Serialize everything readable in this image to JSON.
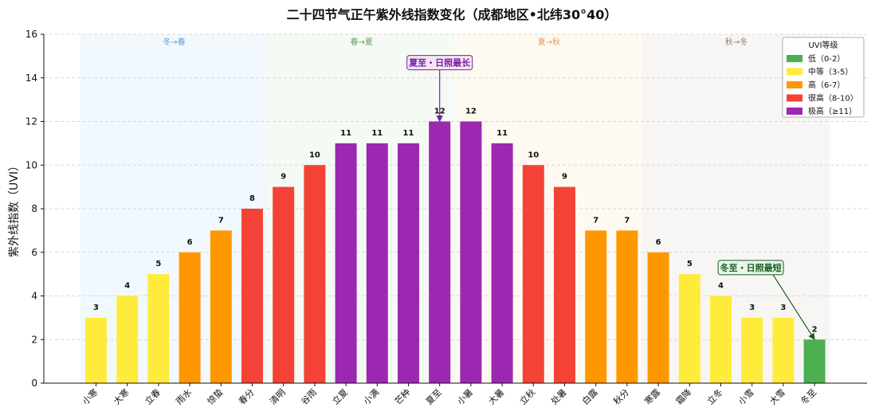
{
  "chart_data": {
    "type": "bar",
    "title": "二十四节气正午紫外线指数变化（成都地区•北纬30°40）",
    "ylabel": "紫外线指数（UVI）",
    "xlabel": "",
    "ylim": [
      0,
      16
    ],
    "yticks": [
      0,
      2,
      4,
      6,
      8,
      10,
      12,
      14,
      16
    ],
    "grid": true,
    "categories": [
      "小寒",
      "大寒",
      "立春",
      "雨水",
      "惊蛰",
      "春分",
      "清明",
      "谷雨",
      "立夏",
      "小满",
      "芒种",
      "夏至",
      "小暑",
      "大暑",
      "立秋",
      "处暑",
      "白露",
      "秋分",
      "寒露",
      "霜降",
      "立冬",
      "小雪",
      "大雪",
      "冬至"
    ],
    "values": [
      3,
      4,
      5,
      6,
      7,
      8,
      9,
      10,
      11,
      11,
      11,
      12,
      12,
      11,
      10,
      9,
      7,
      7,
      6,
      5,
      4,
      3,
      3,
      2
    ],
    "value_labels": [
      "3",
      "4",
      "5",
      "6",
      "7",
      "8",
      "9",
      "10",
      "11",
      "11",
      "11",
      "12",
      "12",
      "11",
      "10",
      "9",
      "7",
      "7",
      "6",
      "5",
      "4",
      "3",
      "3",
      "2"
    ],
    "level_colors": {
      "low": "#4caf50",
      "moderate": "#ffeb3b",
      "high": "#ff9800",
      "very_high": "#f44336",
      "extreme": "#9c27b0"
    },
    "seasons": [
      {
        "label": "冬→春",
        "start": 0,
        "end": 5,
        "color": "#e3f2fd",
        "text_color": "#5b9bd5"
      },
      {
        "label": "春→夏",
        "start": 6,
        "end": 11,
        "color": "#e8f5e9",
        "text_color": "#5a9e5e"
      },
      {
        "label": "夏→秋",
        "start": 12,
        "end": 17,
        "color": "#fff3e0",
        "text_color": "#e8935a"
      },
      {
        "label": "秋→冬",
        "start": 18,
        "end": 23,
        "color": "#efebe9",
        "text_color": "#8d7b72"
      }
    ],
    "legend": {
      "title": "UVI等级",
      "placement": "top-right",
      "entries": [
        {
          "label": "低（0-2）",
          "color": "#4caf50"
        },
        {
          "label": "中等（3-5）",
          "color": "#ffeb3b"
        },
        {
          "label": "高（6-7）",
          "color": "#ff9800"
        },
        {
          "label": "很高（8-10）",
          "color": "#f44336"
        },
        {
          "label": "极高（≥11）",
          "color": "#9c27b0"
        }
      ]
    },
    "annotations": [
      {
        "text": "夏至・日照最长",
        "target_index": 11,
        "target_value": 12,
        "color": "#7b1fa2",
        "bg": "#f3e5f5",
        "text_y": 14.7
      },
      {
        "text": "冬至・日照最短",
        "target_index": 23,
        "target_value": 2,
        "color": "#1b5e20",
        "bg": "#e8f5e9",
        "text_y": 5.3
      }
    ]
  }
}
